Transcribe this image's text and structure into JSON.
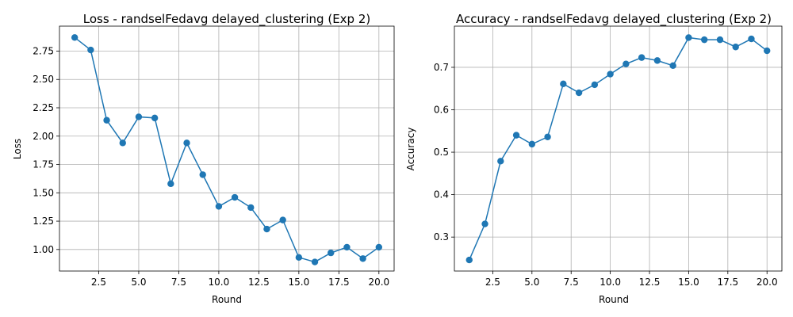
{
  "chart_data": [
    {
      "type": "line",
      "title": "Loss - randselFedavg delayed_clustering (Exp 2)",
      "xlabel": "Round",
      "ylabel": "Loss",
      "x": [
        1,
        2,
        3,
        4,
        5,
        6,
        7,
        8,
        9,
        10,
        11,
        12,
        13,
        14,
        15,
        16,
        17,
        18,
        19,
        20
      ],
      "series": [
        {
          "values": [
            2.87,
            2.76,
            2.14,
            1.94,
            2.17,
            2.16,
            1.58,
            1.94,
            1.66,
            1.38,
            1.46,
            1.37,
            1.18,
            1.26,
            0.93,
            0.89,
            0.97,
            1.02,
            0.92,
            1.02
          ]
        }
      ],
      "xlim": [
        0.05,
        20.95
      ],
      "ylim": [
        0.81,
        2.97
      ],
      "xticks": [
        2.5,
        5.0,
        7.5,
        10.0,
        12.5,
        15.0,
        17.5,
        20.0
      ],
      "xtick_labels": [
        "2.5",
        "5.0",
        "7.5",
        "10.0",
        "12.5",
        "15.0",
        "17.5",
        "20.0"
      ],
      "yticks": [
        1.0,
        1.25,
        1.5,
        1.75,
        2.0,
        2.25,
        2.5,
        2.75
      ],
      "ytick_labels": [
        "1.00",
        "1.25",
        "1.50",
        "1.75",
        "2.00",
        "2.25",
        "2.50",
        "2.75"
      ],
      "grid": true,
      "color": "#1f77b4",
      "marker": "circle"
    },
    {
      "type": "line",
      "title": "Accuracy - randselFedavg delayed_clustering (Exp 2)",
      "xlabel": "Round",
      "ylabel": "Accuracy",
      "x": [
        1,
        2,
        3,
        4,
        5,
        6,
        7,
        8,
        9,
        10,
        11,
        12,
        13,
        14,
        15,
        16,
        17,
        18,
        19,
        20
      ],
      "series": [
        {
          "values": [
            0.246,
            0.331,
            0.479,
            0.54,
            0.519,
            0.536,
            0.661,
            0.64,
            0.659,
            0.684,
            0.708,
            0.723,
            0.716,
            0.704,
            0.77,
            0.765,
            0.765,
            0.748,
            0.767,
            0.739
          ]
        }
      ],
      "xlim": [
        0.05,
        20.95
      ],
      "ylim": [
        0.22,
        0.797
      ],
      "xticks": [
        2.5,
        5.0,
        7.5,
        10.0,
        12.5,
        15.0,
        17.5,
        20.0
      ],
      "xtick_labels": [
        "2.5",
        "5.0",
        "7.5",
        "10.0",
        "12.5",
        "15.0",
        "17.5",
        "20.0"
      ],
      "yticks": [
        0.3,
        0.4,
        0.5,
        0.6,
        0.7
      ],
      "ytick_labels": [
        "0.3",
        "0.4",
        "0.5",
        "0.6",
        "0.7"
      ],
      "grid": true,
      "color": "#1f77b4",
      "marker": "circle"
    }
  ]
}
